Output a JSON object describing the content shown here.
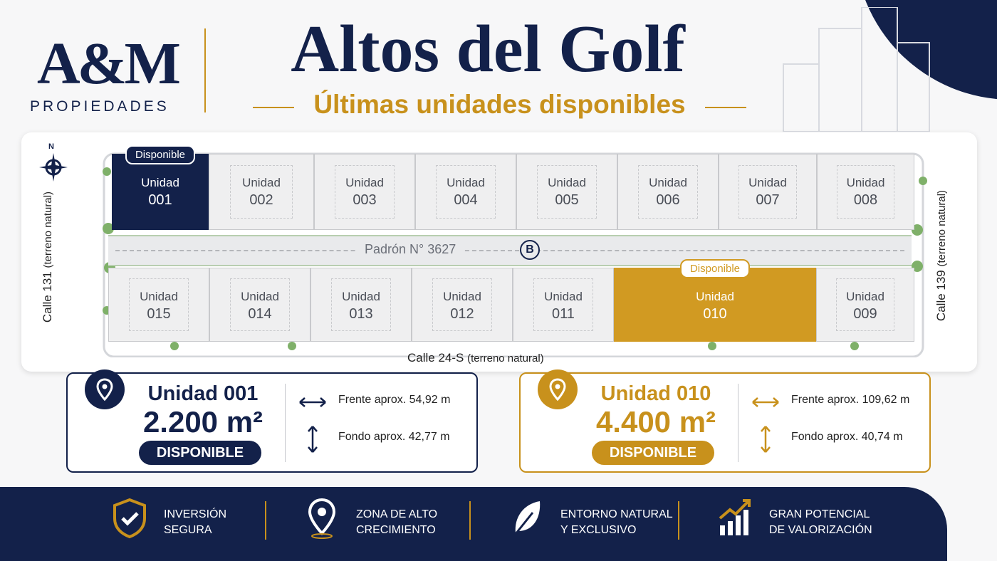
{
  "logo": {
    "mark": "A&M",
    "sub": "PROPIEDADES"
  },
  "header": {
    "title": "Altos del Golf",
    "subtitle": "Últimas unidades disponibles"
  },
  "map": {
    "compass": "N",
    "streets": {
      "left": {
        "name": "Calle 131",
        "note": "(terreno natural)"
      },
      "right": {
        "name": "Calle 139",
        "note": "(terreno natural)"
      },
      "bottom": {
        "name": "Calle 24-S",
        "note": "(terreno natural)"
      }
    },
    "padron": "Padrón N° 3627",
    "block": "B",
    "top_row": [
      {
        "label": "Unidad",
        "number": "001",
        "badge": "Disponible",
        "color": "#13214a"
      },
      {
        "label": "Unidad",
        "number": "002"
      },
      {
        "label": "Unidad",
        "number": "003"
      },
      {
        "label": "Unidad",
        "number": "004"
      },
      {
        "label": "Unidad",
        "number": "005"
      },
      {
        "label": "Unidad",
        "number": "006"
      },
      {
        "label": "Unidad",
        "number": "007"
      },
      {
        "label": "Unidad",
        "number": "008"
      }
    ],
    "bottom_row": [
      {
        "label": "Unidad",
        "number": "015"
      },
      {
        "label": "Unidad",
        "number": "014"
      },
      {
        "label": "Unidad",
        "number": "013"
      },
      {
        "label": "Unidad",
        "number": "012"
      },
      {
        "label": "Unidad",
        "number": "011"
      },
      {
        "label": "Unidad",
        "number": "010",
        "badge": "Disponible",
        "color": "#d19a22"
      },
      {
        "label": "Unidad",
        "number": "009"
      }
    ]
  },
  "cards": [
    {
      "title": "Unidad 001",
      "area": "2.200 m²",
      "status": "DISPONIBLE",
      "front_label": "Frente aprox.",
      "front_value": "54,92 m",
      "depth_label": "Fondo aprox.",
      "depth_value": "42,77 m",
      "color": "#13214a"
    },
    {
      "title": "Unidad 010",
      "area": "4.400 m²",
      "status": "DISPONIBLE",
      "front_label": "Frente aprox.",
      "front_value": "109,62 m",
      "depth_label": "Fondo aprox.",
      "depth_value": "40,74 m",
      "color": "#c8911c"
    }
  ],
  "features": [
    {
      "line1": "INVERSIÓN",
      "line2": "SEGURA"
    },
    {
      "line1": "ZONA DE ALTO",
      "line2": "CRECIMIENTO"
    },
    {
      "line1": "ENTORNO NATURAL",
      "line2": "Y EXCLUSIVO"
    },
    {
      "line1": "GRAN POTENCIAL",
      "line2": "DE VALORIZACIÓN"
    }
  ]
}
